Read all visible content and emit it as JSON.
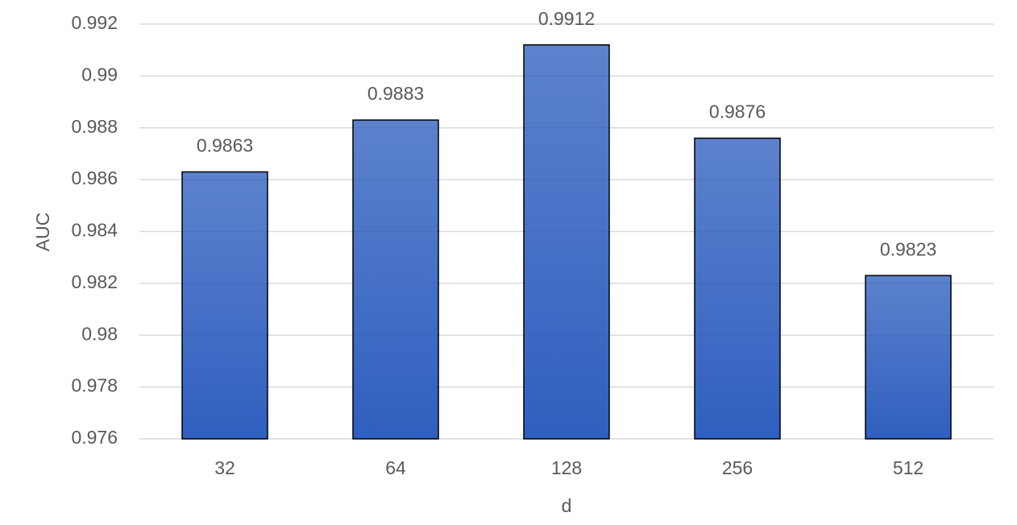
{
  "chart_data": {
    "type": "bar",
    "categories": [
      "32",
      "64",
      "128",
      "256",
      "512"
    ],
    "values": [
      0.9863,
      0.9883,
      0.9912,
      0.9876,
      0.9823
    ],
    "color": "#2f5fbf",
    "xlabel": "d",
    "ylabel": "AUC",
    "ylim": [
      0.976,
      0.992
    ],
    "yticks": [
      0.976,
      0.978,
      0.98,
      0.982,
      0.984,
      0.986,
      0.988,
      0.99,
      0.992
    ],
    "grid": true
  }
}
